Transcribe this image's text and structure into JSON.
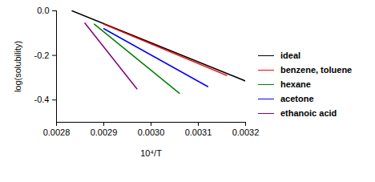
{
  "chart_data": {
    "type": "line",
    "xlabel": "10⁴/T",
    "ylabel": "log(solubility)",
    "xlim": [
      0.0028,
      0.0032
    ],
    "ylim": [
      -0.5,
      0
    ],
    "xticks": [
      0.0028,
      0.0029,
      {
        "value": 0.003,
        "label": "0.0030"
      },
      0.0031,
      0.0032
    ],
    "yticks": [
      {
        "value": 0,
        "label": "0.0"
      },
      -0.2,
      -0.4
    ],
    "legend": "right",
    "grid": false,
    "series": [
      {
        "name": "ideal",
        "color": "#000000",
        "x": [
          0.002833,
          0.0032
        ],
        "values": [
          0,
          -0.315
        ]
      },
      {
        "name": "benzene, toluene",
        "color": "#ff0000",
        "x": [
          0.0029,
          0.00316
        ],
        "values": [
          -0.06,
          -0.29
        ]
      },
      {
        "name": "hexane",
        "color": "#008000",
        "x": [
          0.00288,
          0.00306
        ],
        "values": [
          -0.06,
          -0.37
        ]
      },
      {
        "name": "acetone",
        "color": "#0000ff",
        "x": [
          0.0029,
          0.00312
        ],
        "values": [
          -0.08,
          -0.34
        ]
      },
      {
        "name": "ethanoic acid",
        "color": "#800080",
        "x": [
          0.00286,
          0.00297
        ],
        "values": [
          -0.055,
          -0.35
        ]
      }
    ]
  }
}
